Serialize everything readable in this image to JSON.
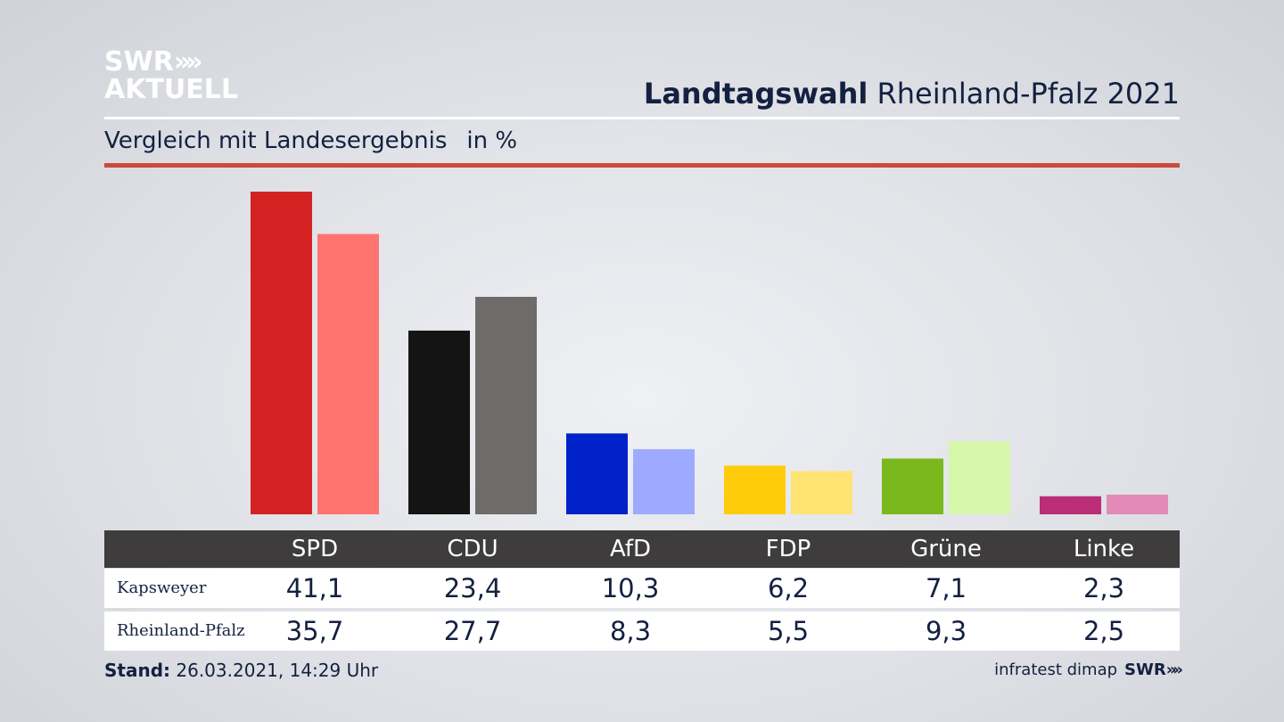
{
  "logo": {
    "line1": "SWR",
    "arrows": "»",
    "line2": "AKTUELL"
  },
  "header": {
    "title_bold": "Landtagswahl",
    "title_rest": "Rheinland-Pfalz 2021"
  },
  "subtitle": {
    "text": "Vergleich mit Landesergebnis",
    "unit": "in %"
  },
  "footer": {
    "stand_label": "Stand:",
    "stand_value": "26.03.2021, 14:29 Uhr",
    "source": "infratest dimap",
    "brand": "SWR",
    "brand_arrows": "»"
  },
  "chart_data": {
    "type": "bar",
    "categories": [
      "SPD",
      "CDU",
      "AfD",
      "FDP",
      "Grüne",
      "Linke"
    ],
    "series": [
      {
        "name": "Kapsweyer",
        "values": [
          41.1,
          23.4,
          10.3,
          6.2,
          7.1,
          2.3
        ],
        "labels": [
          "41,1",
          "23,4",
          "10,3",
          "6,2",
          "7,1",
          "2,3"
        ]
      },
      {
        "name": "Rheinland-Pfalz",
        "values": [
          35.7,
          27.7,
          8.3,
          5.5,
          9.3,
          2.5
        ],
        "labels": [
          "35,7",
          "27,7",
          "8,3",
          "5,5",
          "9,3",
          "2,5"
        ]
      }
    ],
    "colors": [
      [
        "#d42222",
        "#ff746e"
      ],
      [
        "#141414",
        "#6e6c6a"
      ],
      [
        "#0022c8",
        "#9eaaff"
      ],
      [
        "#ffcc0a",
        "#ffe373"
      ],
      [
        "#7ab81e",
        "#d6f7aa"
      ],
      [
        "#bb2d76",
        "#e28ab8"
      ]
    ],
    "ylim": [
      0,
      41.1
    ]
  }
}
